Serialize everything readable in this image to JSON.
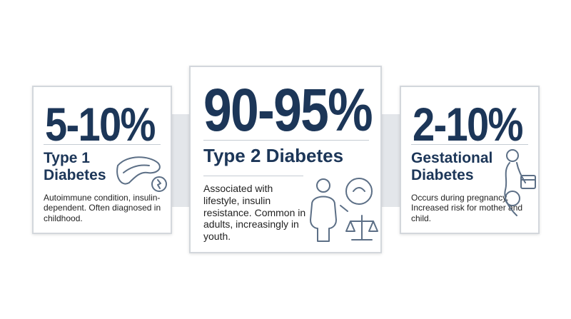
{
  "cards": [
    {
      "stat": "5-10%",
      "title": "Type 1 Diabetes",
      "description": "Autoimmune condition, insulin-dependent. Often diagnosed in childhood."
    },
    {
      "stat": "90-95%",
      "title": "Type 2 Diabetes",
      "description": "Associated with lifestyle, insulin resistance. Common in adults, increasingly in youth."
    },
    {
      "stat": "2-10%",
      "title": "Gestational Diabetes",
      "description": "Occurs during pregnancy. Increased risk for mother and child."
    }
  ]
}
